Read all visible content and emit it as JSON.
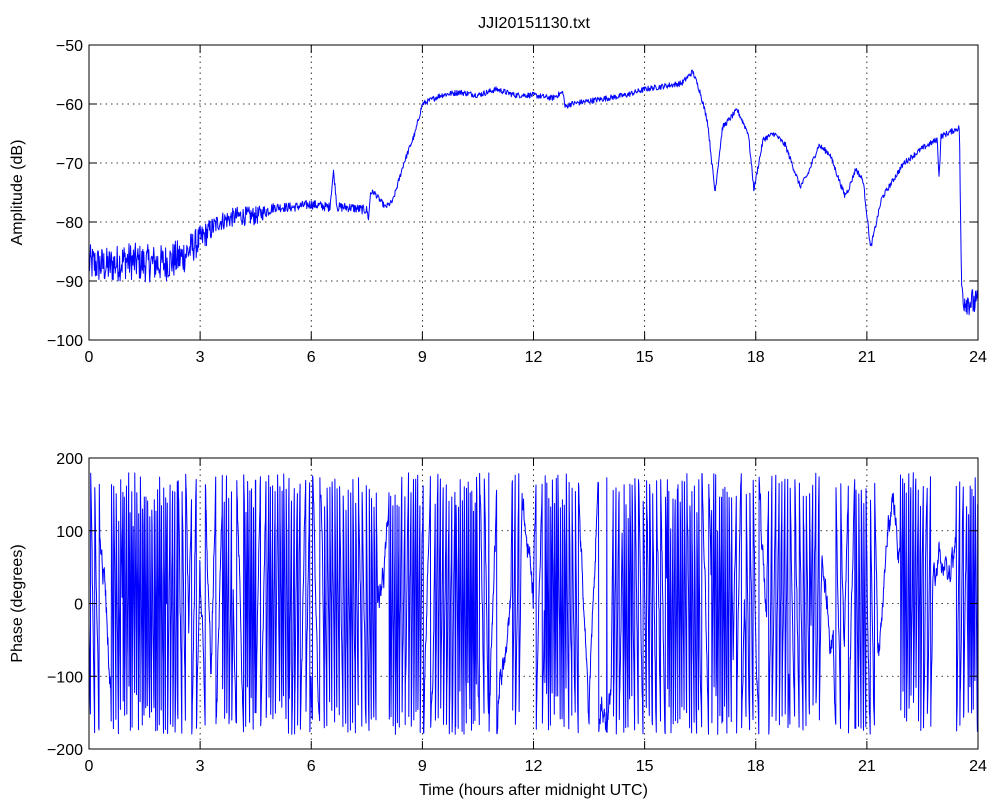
{
  "chart_data": [
    {
      "type": "line",
      "title": "JJI20151130.txt",
      "xlabel": "",
      "ylabel": "Amplitude (dB)",
      "xlim": [
        0,
        24
      ],
      "ylim": [
        -100,
        -50
      ],
      "xticks": [
        0,
        3,
        6,
        9,
        12,
        15,
        18,
        21,
        24
      ],
      "yticks": [
        -50,
        -60,
        -70,
        -80,
        -90,
        -100
      ],
      "grid": true,
      "color": "#0000ff",
      "series": [
        {
          "x": [
            0,
            0.5,
            1,
            1.5,
            2,
            2.5,
            3,
            3.5,
            4,
            4.5,
            5,
            5.5,
            6,
            6.5,
            6.6,
            6.7,
            7,
            7.5,
            7.55,
            7.6,
            7.7,
            8,
            8.2,
            8.5,
            8.8,
            9,
            9.5,
            10,
            10.5,
            11,
            11.5,
            12,
            12.5,
            12.8,
            12.85,
            13,
            13.5,
            14,
            14.5,
            15,
            15.5,
            16,
            16.3,
            16.5,
            16.7,
            16.9,
            17.1,
            17.5,
            17.8,
            17.95,
            18.2,
            18.5,
            18.8,
            19.2,
            19.4,
            19.7,
            20,
            20.4,
            20.5,
            20.7,
            20.9,
            21.1,
            21.4,
            22,
            22.5,
            22.9,
            22.95,
            23,
            23.5,
            23.55,
            23.6,
            24
          ],
          "y": [
            -87,
            -87.5,
            -86.5,
            -87,
            -87,
            -86,
            -83,
            -80,
            -79,
            -79,
            -77.5,
            -77.5,
            -77,
            -77.5,
            -71.5,
            -77.5,
            -77.5,
            -78,
            -79.5,
            -75,
            -75,
            -77.5,
            -76.5,
            -70,
            -65,
            -60,
            -58.5,
            -58,
            -58.5,
            -57.5,
            -58.5,
            -58.5,
            -59,
            -58,
            -60.5,
            -60,
            -59.5,
            -59,
            -58.5,
            -57.5,
            -57,
            -56.5,
            -54.5,
            -58,
            -63,
            -75,
            -64,
            -61,
            -65,
            -74.5,
            -66,
            -65,
            -67,
            -74,
            -72,
            -67,
            -68.5,
            -75.5,
            -74.5,
            -71,
            -73,
            -84.5,
            -76,
            -70,
            -67.5,
            -66,
            -72.5,
            -65.5,
            -64,
            -90,
            -93,
            -94
          ],
          "noise": [
            2,
            2,
            2,
            2,
            2,
            2,
            1.5,
            1,
            1,
            1,
            0.5,
            0.5,
            0.5,
            0.5,
            0.3,
            0.5,
            0.5,
            0.5,
            0.3,
            0.3,
            0.3,
            0.3,
            0.3,
            0.3,
            0.3,
            0.3,
            0.3,
            0.3,
            0.3,
            0.3,
            0.3,
            0.3,
            0.3,
            0.3,
            0.3,
            0.3,
            0.3,
            0.3,
            0.3,
            0.3,
            0.3,
            0.3,
            0.3,
            0.3,
            0.3,
            0.3,
            0.3,
            0.3,
            0.3,
            0.3,
            0.3,
            0.3,
            0.3,
            0.3,
            0.3,
            0.3,
            0.3,
            0.3,
            0.3,
            0.3,
            0.3,
            0.3,
            0.3,
            0.3,
            0.3,
            0.3,
            0.3,
            0.3,
            0.3,
            1.5,
            1.5,
            1.5
          ]
        }
      ]
    },
    {
      "type": "line",
      "title": "",
      "xlabel": "Time (hours after midnight UTC)",
      "ylabel": "Phase (degrees)",
      "xlim": [
        0,
        24
      ],
      "ylim": [
        -200,
        200
      ],
      "xticks": [
        0,
        3,
        6,
        9,
        12,
        15,
        18,
        21,
        24
      ],
      "yticks": [
        200,
        100,
        0,
        -100,
        -200
      ],
      "grid": true,
      "color": "#0000ff",
      "series": [
        {
          "x": [
            0,
            24
          ],
          "y": [
            -180,
            180
          ],
          "wrapped": true,
          "description_values": "phase wraps between -180 and 180 degrees throughout the day"
        }
      ]
    }
  ]
}
